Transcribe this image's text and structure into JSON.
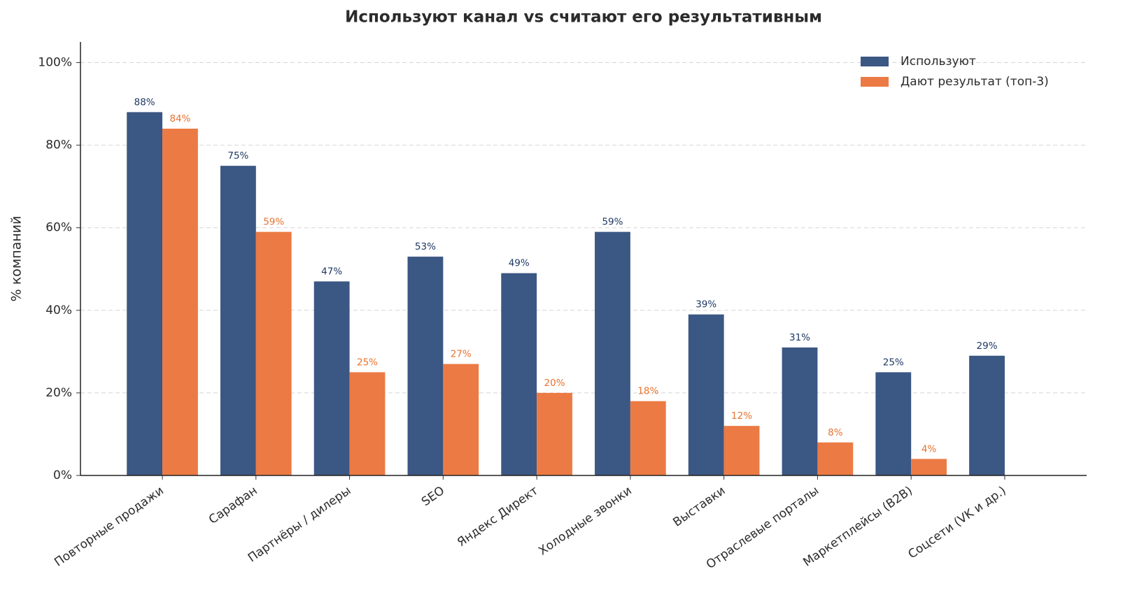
{
  "chart_data": {
    "type": "bar",
    "title": "Используют канал vs считают его результативным",
    "y_label": "% компаний",
    "categories": [
      "Повторные продажи",
      "Сарафан",
      "Партнёры / дилеры",
      "SEO",
      "Яндекс Директ",
      "Холодные звонки",
      "Выставки",
      "Отраслевые порталы",
      "Маркетплейсы (B2B)",
      "Соцсети (VK и др.)"
    ],
    "series": [
      {
        "name": "Используют",
        "color": "#3b5783",
        "label_color": "#1f3864",
        "values": [
          88,
          75,
          47,
          53,
          49,
          59,
          39,
          31,
          25,
          29
        ],
        "value_labels": [
          "88%",
          "75%",
          "47%",
          "53%",
          "49%",
          "59%",
          "39%",
          "31%",
          "25%",
          "29%"
        ]
      },
      {
        "name": "Дают результат (топ-3)",
        "color": "#ec7a44",
        "label_color": "#e8722f",
        "values": [
          84,
          59,
          25,
          27,
          20,
          18,
          12,
          8,
          4,
          0
        ],
        "value_labels": [
          "84%",
          "59%",
          "25%",
          "27%",
          "20%",
          "18%",
          "12%",
          "8%",
          "4%",
          null
        ]
      }
    ],
    "ylim": [
      0,
      105
    ],
    "yticks": [
      {
        "value": 0,
        "label": "0%"
      },
      {
        "value": 20,
        "label": "20%"
      },
      {
        "value": 40,
        "label": "40%"
      },
      {
        "value": 60,
        "label": "60%"
      },
      {
        "value": 80,
        "label": "80%"
      },
      {
        "value": 100,
        "label": "100%"
      }
    ],
    "grid": true,
    "legend": "upper right"
  }
}
